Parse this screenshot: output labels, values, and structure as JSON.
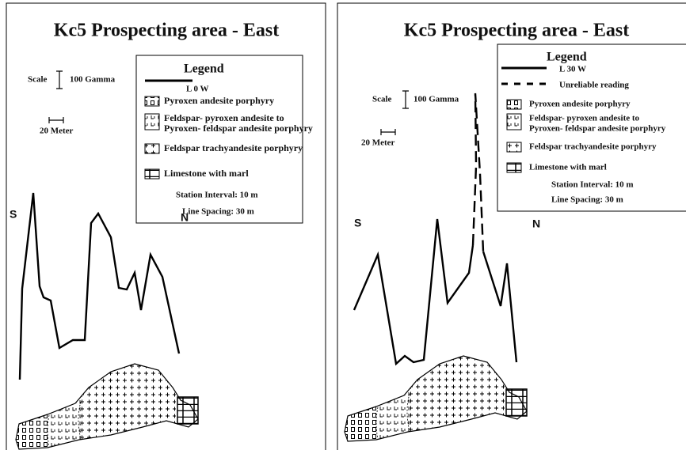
{
  "panels": [
    {
      "title": "Kc5 Prospecting area - East",
      "scale_label": "Scale",
      "scale_value": "100 Gamma",
      "distance": "20 Meter",
      "legend": {
        "title": "Legend",
        "lines": [
          "L 0 W"
        ],
        "items": [
          [
            "Pyroxen andesite porphyry"
          ],
          [
            "Feldspar- pyroxen  andesite to",
            "Pyroxen- feldspar andesite porphyry"
          ],
          [
            "Feldspar trachyandesite porphyry"
          ],
          [
            "Limestone with marl"
          ]
        ],
        "notes": [
          "Station Interval: 10 m",
          "Line Spacing: 30 m"
        ]
      },
      "south": "S",
      "north": "N"
    },
    {
      "title": "Kc5 Prospecting area - East",
      "scale_label": "Scale",
      "scale_value": "100 Gamma",
      "distance": "20 Meter",
      "legend": {
        "title": "Legend",
        "lines": [
          "L 30 W",
          "Unreliable reading"
        ],
        "items": [
          [
            "Pyroxen andesite porphyry"
          ],
          [
            "Feldspar- pyroxen  andesite to",
            "Pyroxen- feldspar andesite porphyry"
          ],
          [
            "Feldspar trachyandesite porphyry"
          ],
          [
            "Limestone with marl"
          ]
        ],
        "notes": [
          "Station Interval: 10 m",
          "Line Spacing: 30 m"
        ]
      },
      "south": "S",
      "north": "N"
    }
  ]
}
